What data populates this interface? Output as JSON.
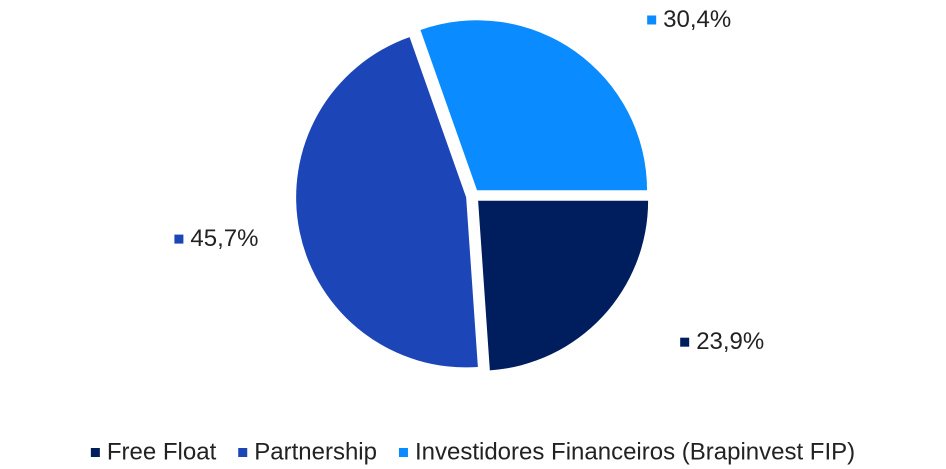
{
  "chart_data": {
    "type": "pie",
    "categories": [
      "Free Float",
      "Partnership",
      "Investidores Financeiros (Brapinvest FIP)"
    ],
    "values": [
      23.9,
      45.7,
      30.4
    ],
    "value_labels": [
      "23,9%",
      "45,7%",
      "30,4%"
    ],
    "colors": [
      "#001d5e",
      "#1c45b8",
      "#0a8bff"
    ],
    "legend": "bottom"
  }
}
